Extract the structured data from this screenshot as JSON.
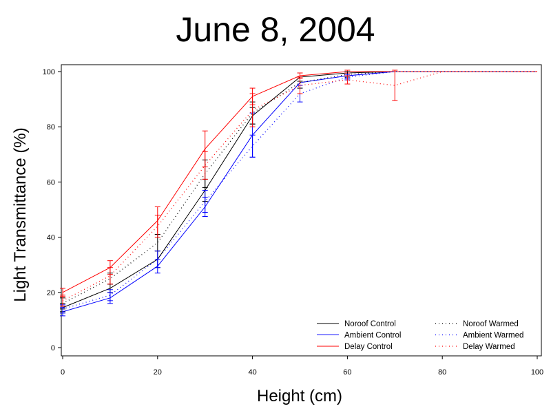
{
  "chart_data": {
    "type": "line",
    "title": "June 8, 2004",
    "xlabel": "Height (cm)",
    "ylabel": "Light Transmittance (%)",
    "xlim": [
      0,
      100
    ],
    "ylim": [
      0,
      100
    ],
    "xticks": [
      0,
      20,
      40,
      60,
      80,
      100
    ],
    "yticks": [
      0,
      20,
      40,
      60,
      80,
      100
    ],
    "grid": false,
    "legend_position": "bottom-right",
    "series": [
      {
        "name": "Noroof Control",
        "color": "#000000",
        "style": "solid",
        "x": [
          0,
          10,
          20,
          30,
          40,
          50,
          60,
          70,
          80,
          100
        ],
        "y": [
          14.5,
          21.5,
          32,
          57,
          84,
          98,
          99.5,
          100,
          100,
          100
        ],
        "err": [
          1.5,
          1.5,
          3,
          4,
          3,
          1.5,
          0.5,
          0,
          0,
          0
        ]
      },
      {
        "name": "Ambient Control",
        "color": "#0000ff",
        "style": "solid",
        "x": [
          0,
          10,
          20,
          30,
          40,
          50,
          60,
          70,
          80,
          100
        ],
        "y": [
          13,
          18,
          29.5,
          51,
          77,
          96,
          98.5,
          100,
          100,
          100
        ],
        "err": [
          1.5,
          2,
          2.5,
          3.5,
          8,
          2,
          1,
          0,
          0,
          0
        ]
      },
      {
        "name": "Delay Control",
        "color": "#ff0000",
        "style": "solid",
        "x": [
          0,
          10,
          20,
          30,
          40,
          50,
          60,
          70,
          80,
          100
        ],
        "y": [
          20,
          29,
          46,
          72,
          91,
          98.5,
          100,
          100,
          100,
          100
        ],
        "err": [
          1.5,
          2.5,
          5,
          6.5,
          3,
          1,
          0.5,
          0,
          0,
          0
        ]
      },
      {
        "name": "Noroof Warmed",
        "color": "#000000",
        "style": "dotted",
        "x": [
          0,
          10,
          20,
          30,
          40,
          50,
          60,
          70,
          80,
          100
        ],
        "y": [
          16,
          25,
          38,
          63,
          85,
          96,
          99,
          100,
          100,
          100
        ],
        "err": [
          2,
          2,
          3,
          5,
          4,
          2,
          1,
          0,
          0,
          0
        ]
      },
      {
        "name": "Ambient Warmed",
        "color": "#0000ff",
        "style": "dotted",
        "x": [
          0,
          10,
          20,
          30,
          40,
          50,
          60,
          70,
          80,
          100
        ],
        "y": [
          14,
          19,
          32,
          53,
          73,
          92,
          98,
          100,
          100,
          100
        ],
        "err": [
          1.5,
          2,
          3,
          4,
          4,
          3,
          1,
          0,
          0,
          0
        ]
      },
      {
        "name": "Delay Warmed",
        "color": "#ff0000",
        "style": "dotted",
        "x": [
          0,
          10,
          20,
          30,
          40,
          50,
          60,
          70,
          80,
          100
        ],
        "y": [
          17,
          26,
          44,
          66,
          86,
          95,
          97,
          95,
          100,
          100
        ],
        "err": [
          2,
          3,
          4,
          5,
          6,
          3,
          1.5,
          5.5,
          0,
          0
        ]
      }
    ]
  }
}
